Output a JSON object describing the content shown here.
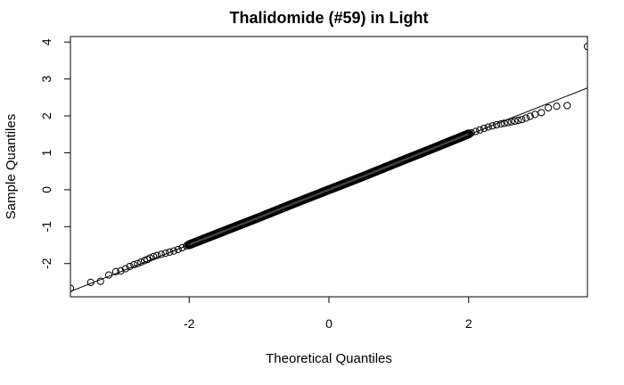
{
  "chart_data": {
    "type": "scatter",
    "title": "Thalidomide (#59) in Light",
    "xlabel": "Theoretical Quantiles",
    "ylabel": "Sample Quantiles",
    "xlim": [
      -3.7,
      3.7
    ],
    "ylim": [
      -2.9,
      4.15
    ],
    "x_ticks": [
      -2,
      0,
      2
    ],
    "y_ticks": [
      -2,
      -1,
      0,
      1,
      2,
      3,
      4
    ],
    "x_tick_labels": [
      "-2",
      "0",
      "2"
    ],
    "y_tick_labels": [
      "-2",
      "-1",
      "0",
      "1",
      "2",
      "3",
      "4"
    ],
    "grid": false,
    "marker": "open-circle",
    "reference_line": {
      "slope": 0.745,
      "intercept": 0.0
    },
    "points": [
      {
        "x": -3.7,
        "y": -2.67
      },
      {
        "x": -3.41,
        "y": -2.51
      },
      {
        "x": -3.27,
        "y": -2.48
      },
      {
        "x": -3.15,
        "y": -2.31
      },
      {
        "x": -3.05,
        "y": -2.22
      },
      {
        "x": -2.98,
        "y": -2.2
      },
      {
        "x": -2.91,
        "y": -2.14
      },
      {
        "x": -2.85,
        "y": -2.08
      },
      {
        "x": -2.79,
        "y": -2.03
      },
      {
        "x": -2.74,
        "y": -2.0
      },
      {
        "x": -2.69,
        "y": -1.96
      },
      {
        "x": -2.64,
        "y": -1.92
      },
      {
        "x": -2.6,
        "y": -1.89
      },
      {
        "x": -2.56,
        "y": -1.85
      },
      {
        "x": -2.51,
        "y": -1.81
      },
      {
        "x": -2.46,
        "y": -1.78
      },
      {
        "x": -2.4,
        "y": -1.75
      },
      {
        "x": -2.34,
        "y": -1.72
      },
      {
        "x": -2.28,
        "y": -1.69
      },
      {
        "x": -2.22,
        "y": -1.66
      },
      {
        "x": -2.16,
        "y": -1.62
      },
      {
        "x": -2.1,
        "y": -1.57
      },
      {
        "x": -2.04,
        "y": -1.52
      },
      {
        "x": 2.04,
        "y": 1.54
      },
      {
        "x": 2.1,
        "y": 1.58
      },
      {
        "x": 2.16,
        "y": 1.62
      },
      {
        "x": 2.22,
        "y": 1.66
      },
      {
        "x": 2.28,
        "y": 1.7
      },
      {
        "x": 2.34,
        "y": 1.73
      },
      {
        "x": 2.4,
        "y": 1.76
      },
      {
        "x": 2.46,
        "y": 1.78
      },
      {
        "x": 2.51,
        "y": 1.8
      },
      {
        "x": 2.56,
        "y": 1.82
      },
      {
        "x": 2.61,
        "y": 1.84
      },
      {
        "x": 2.66,
        "y": 1.86
      },
      {
        "x": 2.71,
        "y": 1.88
      },
      {
        "x": 2.76,
        "y": 1.9
      },
      {
        "x": 2.82,
        "y": 1.94
      },
      {
        "x": 2.88,
        "y": 1.99
      },
      {
        "x": 2.95,
        "y": 2.04
      },
      {
        "x": 3.04,
        "y": 2.09
      },
      {
        "x": 3.14,
        "y": 2.22
      },
      {
        "x": 3.26,
        "y": 2.26
      },
      {
        "x": 3.41,
        "y": 2.28
      },
      {
        "x": 3.7,
        "y": 3.88
      }
    ],
    "dense_band": [
      {
        "x": -2.0,
        "y": -1.49
      },
      {
        "x": -1.5,
        "y": -1.12
      },
      {
        "x": -1.0,
        "y": -0.75
      },
      {
        "x": -0.5,
        "y": -0.37
      },
      {
        "x": 0.0,
        "y": 0.0
      },
      {
        "x": 0.5,
        "y": 0.37
      },
      {
        "x": 1.0,
        "y": 0.75
      },
      {
        "x": 1.5,
        "y": 1.13
      },
      {
        "x": 2.0,
        "y": 1.51
      }
    ]
  }
}
